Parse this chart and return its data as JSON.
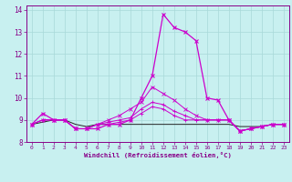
{
  "xlabel": "Windchill (Refroidissement éolien,°C)",
  "xlim": [
    -0.5,
    23.5
  ],
  "ylim": [
    8.0,
    14.2
  ],
  "yticks": [
    8,
    9,
    10,
    11,
    12,
    13,
    14
  ],
  "xticks": [
    0,
    1,
    2,
    3,
    4,
    5,
    6,
    7,
    8,
    9,
    10,
    11,
    12,
    13,
    14,
    15,
    16,
    17,
    18,
    19,
    20,
    21,
    22,
    23
  ],
  "bg_color": "#c8f0f0",
  "grid_color": "#a8d8d8",
  "line_color": "#cc00cc",
  "series_main": [
    8.8,
    9.3,
    9.0,
    9.0,
    8.6,
    8.6,
    8.6,
    8.8,
    8.8,
    9.0,
    10.0,
    11.0,
    13.8,
    13.2,
    13.0,
    12.6,
    10.0,
    9.9,
    9.0,
    8.5,
    8.6,
    8.7,
    8.8,
    8.8
  ],
  "series_2": [
    8.8,
    9.0,
    9.0,
    9.0,
    8.6,
    8.6,
    8.8,
    9.0,
    9.2,
    9.5,
    9.8,
    10.5,
    10.2,
    9.9,
    9.5,
    9.2,
    9.0,
    9.0,
    9.0,
    8.5,
    8.6,
    8.7,
    8.8,
    8.8
  ],
  "series_3": [
    8.8,
    9.0,
    9.0,
    9.0,
    8.6,
    8.6,
    8.8,
    8.9,
    9.0,
    9.1,
    9.5,
    9.8,
    9.7,
    9.4,
    9.2,
    9.0,
    9.0,
    9.0,
    9.0,
    8.5,
    8.6,
    8.7,
    8.8,
    8.8
  ],
  "series_4": [
    8.8,
    9.0,
    9.0,
    9.0,
    8.6,
    8.6,
    8.8,
    8.8,
    8.9,
    9.0,
    9.3,
    9.6,
    9.5,
    9.2,
    9.0,
    9.0,
    9.0,
    9.0,
    9.0,
    8.5,
    8.6,
    8.7,
    8.8,
    8.8
  ],
  "series_flat": [
    8.8,
    8.9,
    9.0,
    9.0,
    8.8,
    8.7,
    8.8,
    8.8,
    8.8,
    8.8,
    8.8,
    8.8,
    8.8,
    8.8,
    8.8,
    8.8,
    8.8,
    8.8,
    8.8,
    8.7,
    8.7,
    8.7,
    8.8,
    8.8
  ]
}
